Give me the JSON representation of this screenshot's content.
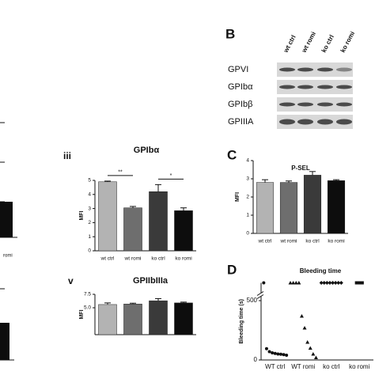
{
  "fragment": {
    "labels": [
      "romi"
    ]
  },
  "blot": {
    "panel_label": "B",
    "lanes": [
      "wt ctrl",
      "wt romi",
      "ko ctrl",
      "ko romi"
    ],
    "rows": [
      "GPVI",
      "GPIbα",
      "GPIbβ",
      "GPIIIA"
    ]
  },
  "chart_data": [
    {
      "type": "bar",
      "panel_label": "iii",
      "title": "GPIbα",
      "y_label": "MFI",
      "categories": [
        "wt ctrl",
        "wt romi",
        "ko ctrl",
        "ko romi"
      ],
      "values": [
        4.9,
        3.05,
        4.2,
        2.85
      ],
      "errors": [
        0.05,
        0.1,
        0.5,
        0.2
      ],
      "colors": [
        "#b3b3b3",
        "#6e6e6e",
        "#3a3a3a",
        "#0d0d0d"
      ],
      "ylim": [
        0,
        5
      ],
      "yticks": [
        0,
        1,
        2,
        3,
        4,
        5
      ],
      "annotations": [
        {
          "text": "**",
          "categories": [
            "wt ctrl",
            "wt romi"
          ]
        },
        {
          "text": "*",
          "categories": [
            "ko ctrl",
            "ko romi"
          ]
        }
      ]
    },
    {
      "type": "bar",
      "panel_label": "v",
      "title": "GPIIbIIIa",
      "y_label": "MFI",
      "values": [
        5.6,
        5.7,
        6.3,
        5.9
      ],
      "errors": [
        0.3,
        0.15,
        0.4,
        0.15
      ],
      "colors": [
        "#b3b3b3",
        "#6e6e6e",
        "#3a3a3a",
        "#0d0d0d"
      ],
      "ylim": [
        0,
        7.5
      ],
      "yticks": [
        {
          "value": 5,
          "label": "5.0"
        },
        7.5
      ]
    },
    {
      "type": "bar",
      "panel_label": "C",
      "title": "P-SEL",
      "y_label": "MFI",
      "categories": [
        "wt ctrl",
        "wt romi",
        "ko ctrl",
        "ko romi"
      ],
      "values": [
        2.8,
        2.8,
        3.2,
        2.9
      ],
      "errors": [
        0.15,
        0.08,
        0.2,
        0.05
      ],
      "colors": [
        "#b3b3b3",
        "#6e6e6e",
        "#3a3a3a",
        "#0d0d0d"
      ],
      "ylim": [
        0,
        4
      ],
      "yticks": [
        0,
        1,
        2,
        3,
        4
      ]
    },
    {
      "type": "dotplot",
      "panel_label": "D",
      "title": "Bleeding time",
      "y_label": "Bleeding time (s)",
      "categories": [
        "WT ctrl",
        "WT romi",
        "ko ctrl",
        "ko romi"
      ],
      "markers": [
        "circle",
        "triangle",
        "diamond",
        "square"
      ],
      "values": [
        [
          650,
          95,
          70,
          60,
          55,
          50,
          48,
          45,
          40
        ],
        [
          650,
          650,
          650,
          650,
          370,
          270,
          150,
          100,
          50,
          20
        ],
        [
          650,
          650,
          650,
          650,
          650,
          650,
          650,
          650
        ],
        [
          650,
          650,
          650
        ]
      ],
      "ylim": [
        0,
        650
      ],
      "yticks": [
        0,
        500
      ]
    }
  ]
}
